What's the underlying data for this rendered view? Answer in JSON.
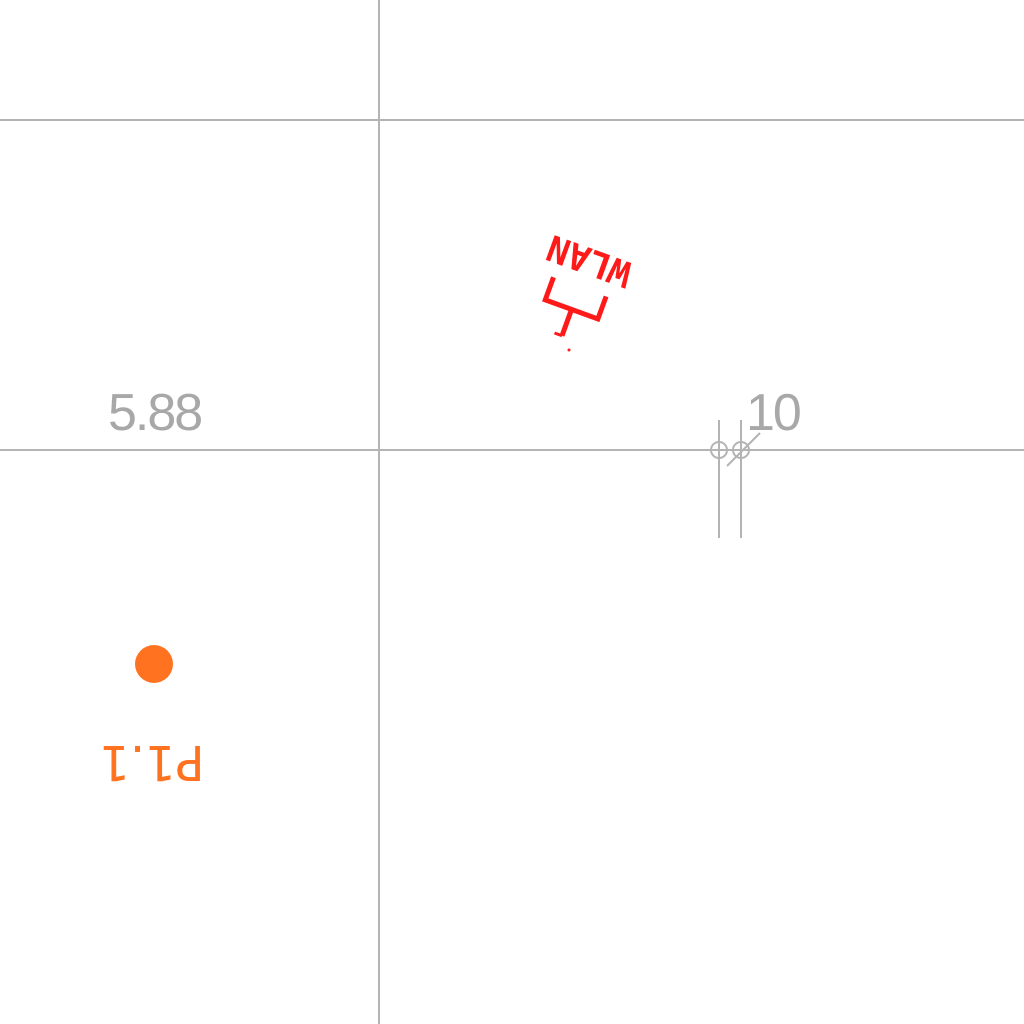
{
  "colors": {
    "background": "#ffffff",
    "grid_line": "#b4b4b4",
    "dimension_text": "#a8a8a8",
    "point": "#ff7320",
    "wlan_symbol": "#ff1a1a"
  },
  "labels": {
    "dimension_left": "5.88",
    "dimension_right": "10",
    "point_label": "P1.1",
    "wlan_label": "WLAN"
  },
  "icons": {
    "wlan_symbol": "wlan-outlet-icon",
    "point_marker": "point-marker-icon",
    "connection_marker": "connection-marker-icon"
  }
}
